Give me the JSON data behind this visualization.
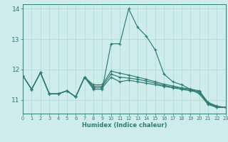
{
  "xlabel": "Humidex (Indice chaleur)",
  "bg_color": "#cdecea",
  "line_color": "#2e7d72",
  "grid_color": "#afd8d4",
  "xlim": [
    0,
    23
  ],
  "ylim": [
    10.55,
    14.15
  ],
  "yticks": [
    11,
    12,
    13,
    14
  ],
  "xticks": [
    0,
    1,
    2,
    3,
    4,
    5,
    6,
    7,
    8,
    9,
    10,
    11,
    12,
    13,
    14,
    15,
    16,
    17,
    18,
    19,
    20,
    21,
    22,
    23
  ],
  "lines": [
    [
      11.8,
      11.35,
      11.9,
      11.2,
      11.2,
      11.3,
      11.1,
      11.75,
      11.35,
      11.35,
      12.85,
      12.85,
      14.0,
      13.4,
      13.1,
      12.65,
      11.85,
      11.6,
      11.5,
      11.35,
      11.2,
      10.85,
      10.75,
      10.75
    ],
    [
      11.8,
      11.35,
      11.9,
      11.2,
      11.2,
      11.3,
      11.1,
      11.75,
      11.4,
      11.4,
      11.75,
      11.6,
      11.65,
      11.6,
      11.55,
      11.5,
      11.45,
      11.4,
      11.35,
      11.3,
      11.25,
      10.88,
      10.77,
      10.75
    ],
    [
      11.8,
      11.35,
      11.9,
      11.2,
      11.2,
      11.3,
      11.1,
      11.75,
      11.45,
      11.45,
      11.85,
      11.75,
      11.72,
      11.68,
      11.62,
      11.55,
      11.48,
      11.42,
      11.38,
      11.33,
      11.28,
      10.9,
      10.78,
      10.75
    ],
    [
      11.8,
      11.35,
      11.9,
      11.2,
      11.2,
      11.3,
      11.1,
      11.75,
      11.5,
      11.5,
      11.95,
      11.88,
      11.82,
      11.75,
      11.68,
      11.6,
      11.52,
      11.46,
      11.4,
      11.36,
      11.3,
      10.92,
      10.8,
      10.75
    ]
  ]
}
